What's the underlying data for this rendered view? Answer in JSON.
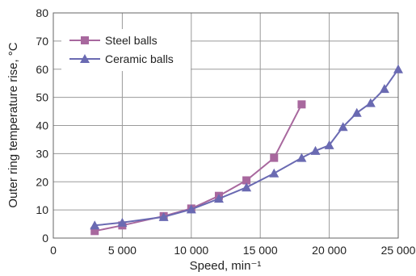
{
  "chart_data": {
    "type": "line",
    "xlabel": "Speed, min⁻¹",
    "ylabel": "Outer ring temperature rise, °C",
    "xlim": [
      0,
      25000
    ],
    "ylim": [
      0,
      80
    ],
    "x_ticks": [
      0,
      5000,
      10000,
      15000,
      20000,
      25000
    ],
    "x_tick_labels": [
      "0",
      "5 000",
      "10 000",
      "15 000",
      "20 000",
      "25 000"
    ],
    "y_ticks": [
      0,
      10,
      20,
      30,
      40,
      50,
      60,
      70,
      80
    ],
    "y_tick_labels": [
      "0",
      "10",
      "20",
      "30",
      "40",
      "50",
      "60",
      "70",
      "80"
    ],
    "grid": true,
    "legend_position": "top-left",
    "series": [
      {
        "name": "Steel balls",
        "marker": "square",
        "color": "#a8689e",
        "x": [
          3000,
          5000,
          8000,
          10000,
          12000,
          14000,
          16000,
          18000
        ],
        "y": [
          2.5,
          4.5,
          7.8,
          10.5,
          15,
          20.5,
          28.5,
          47.5
        ]
      },
      {
        "name": "Ceramic balls",
        "marker": "triangle",
        "color": "#6a6ab2",
        "x": [
          3000,
          5000,
          8000,
          10000,
          12000,
          14000,
          16000,
          18000,
          19000,
          20000,
          21000,
          22000,
          23000,
          24000,
          25000
        ],
        "y": [
          4.5,
          5.5,
          7.5,
          10.2,
          14,
          18,
          23,
          28.5,
          31,
          33,
          39.5,
          44.5,
          48,
          53,
          60
        ]
      }
    ]
  }
}
